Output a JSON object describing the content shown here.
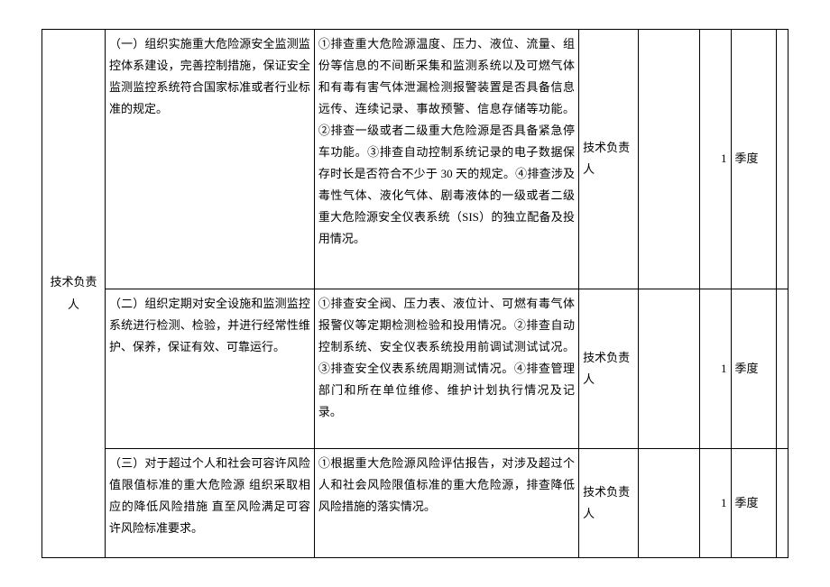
{
  "role": "技术负责人",
  "rows": [
    {
      "task": "（一）组织实施重大危险源安全监测监控体系建设，完善控制措施，保证安全监测监控系统符合国家标准或者行业标准的规定。",
      "check": "①排查重大危险源温度、压力、液位、流量、组份等信息的不间断采集和监测系统以及可燃气体和有毒有害气体泄漏检测报警装置是否具备信息远传、连续记录、事故预警、信息存储等功能。②排查一级或者二级重大危险源是否具备紧急停车功能。③排查自动控制系统记录的电子数据保存时长是否符合不少于 30 天的规定。④排查涉及毒性气体、液化气体、剧毒液体的一级或者二级重大危险源安全仪表系统（SIS）的独立配备及投用情况。",
      "owner": "技术负责人",
      "num": "1",
      "period": "季度"
    },
    {
      "task": "（二）组织定期对安全设施和监测监控系统进行检测、检验，并进行经常性维护、保养，保证有效、可靠运行。",
      "check": "①排查安全阀、压力表、液位计、可燃有毒气体报警仪等定期检测检验和投用情况。②排查自动控制系统、安全仪表系统投用前调试测试试况。③排查安全仪表系统周期测试情况。④排查管理部门和所在单位维修、维护计划执行情况及记录。",
      "owner": "技术负责人",
      "num": "1",
      "period": "季度"
    },
    {
      "task": "（三）对于超过个人和社会可容许风险值限值标准的重大危险源 组织采取相应的降低风险措施 直至风险满足可容许风险标准要求。",
      "check": "①根据重大危险源风险评估报告，对涉及超过个人和社会风险限值标准的重大危险源，排查降低风险措施的落实情况。",
      "owner": "技术负责人",
      "num": "1",
      "period": "季度"
    }
  ]
}
